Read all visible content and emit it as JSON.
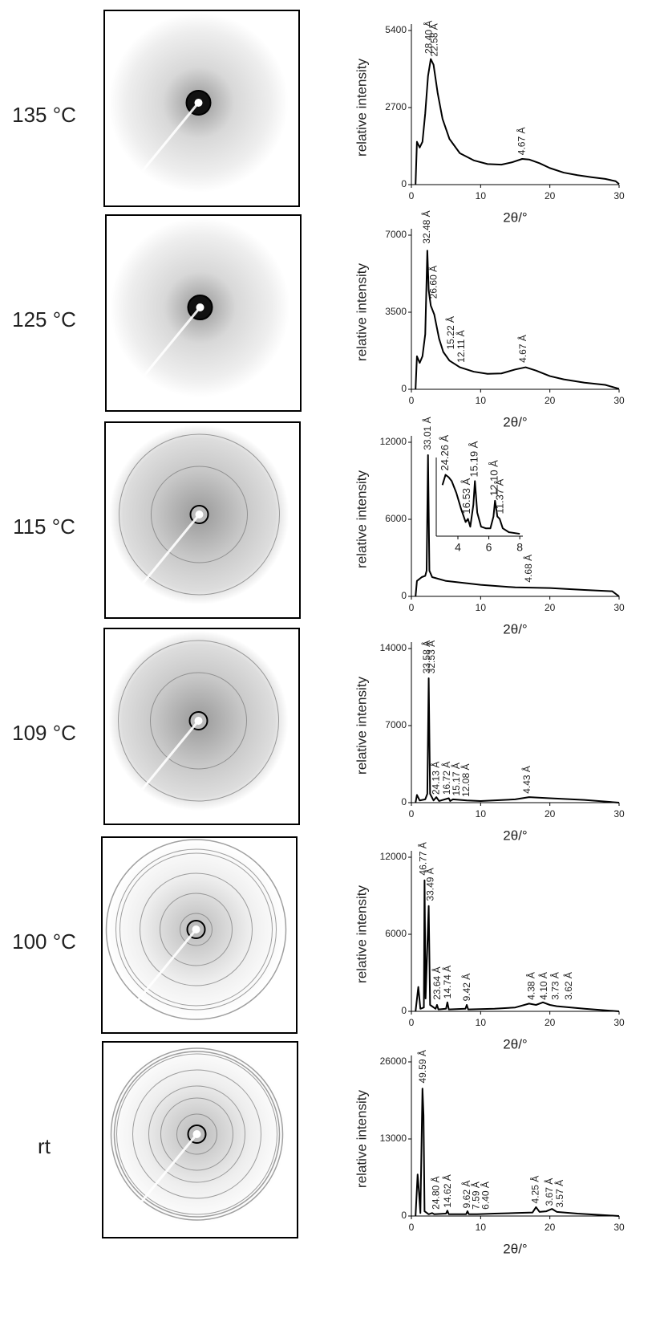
{
  "chart_data": [
    {
      "type": "line",
      "title": "135 °C",
      "xlabel": "2θ/°",
      "ylabel": "relative intensity",
      "color": "#000000",
      "xlim": [
        0,
        30
      ],
      "xticks": [
        0,
        10,
        20,
        30
      ],
      "ylim": [
        0,
        5400
      ],
      "yticks": [
        0,
        2700,
        5400
      ],
      "x": [
        0.6,
        0.8,
        1.2,
        1.6,
        2.0,
        2.4,
        2.8,
        3.2,
        3.8,
        4.5,
        5.5,
        7,
        9,
        11,
        13,
        14.5,
        16,
        17,
        18.5,
        20,
        22,
        24,
        26,
        28,
        29.5,
        30
      ],
      "values": [
        0,
        1500,
        1300,
        1500,
        2500,
        3800,
        4400,
        4200,
        3200,
        2300,
        1600,
        1100,
        850,
        720,
        700,
        780,
        900,
        880,
        750,
        580,
        420,
        330,
        260,
        200,
        120,
        20
      ],
      "annotations": [
        {
          "text": "28.40 Å",
          "x": 2.6,
          "y": 4500
        },
        {
          "text": "22.58 Å",
          "x": 3.4,
          "y": 4400
        },
        {
          "text": "4.67 Å",
          "x": 16,
          "y": 950
        }
      ]
    },
    {
      "type": "line",
      "title": "125 °C",
      "xlabel": "2θ/°",
      "ylabel": "relative intensity",
      "color": "#000000",
      "xlim": [
        0,
        30
      ],
      "xticks": [
        0,
        10,
        20,
        30
      ],
      "ylim": [
        0,
        7000
      ],
      "yticks": [
        0,
        3500,
        7000
      ],
      "x": [
        0.6,
        0.8,
        1.2,
        1.6,
        2.0,
        2.3,
        2.5,
        2.8,
        3.3,
        4.0,
        4.6,
        5.5,
        7,
        9,
        11,
        13,
        15,
        16.5,
        18,
        20,
        22,
        25,
        28,
        30
      ],
      "values": [
        0,
        1500,
        1200,
        1500,
        2500,
        6300,
        4500,
        3800,
        3400,
        2300,
        1700,
        1300,
        1000,
        800,
        700,
        720,
        900,
        1000,
        850,
        600,
        450,
        300,
        200,
        20
      ],
      "annotations": [
        {
          "text": "32.48 Å",
          "x": 2.3,
          "y": 6500
        },
        {
          "text": "26.60 Å",
          "x": 3.3,
          "y": 4000
        },
        {
          "text": "15.22 Å",
          "x": 5.8,
          "y": 1700
        },
        {
          "text": "12.11 Å",
          "x": 7.3,
          "y": 1100
        },
        {
          "text": "4.67 Å",
          "x": 16.2,
          "y": 1100
        }
      ]
    },
    {
      "type": "line",
      "title": "115 °C",
      "xlabel": "2θ/°",
      "ylabel": "relative intensity",
      "color": "#000000",
      "xlim": [
        0,
        30
      ],
      "xticks": [
        0,
        10,
        20,
        30
      ],
      "ylim": [
        0,
        12000
      ],
      "yticks": [
        0,
        6000,
        12000
      ],
      "x": [
        0.6,
        0.8,
        1.5,
        2.0,
        2.2,
        2.4,
        2.6,
        3,
        5,
        10,
        15,
        20,
        25,
        29,
        30
      ],
      "values": [
        0,
        1200,
        1500,
        1600,
        2000,
        11000,
        2000,
        1500,
        1200,
        900,
        700,
        650,
        500,
        400,
        0
      ],
      "annotations": [
        {
          "text": "33.01 Å",
          "x": 2.4,
          "y": 11200
        },
        {
          "text": "4.68 Å",
          "x": 17,
          "y": 900
        }
      ],
      "inset": {
        "xlim": [
          2.6,
          8.2
        ],
        "xticks": [
          4,
          6,
          8
        ],
        "ylim": [
          0,
          100
        ],
        "x": [
          3.0,
          3.2,
          3.4,
          3.6,
          3.9,
          4.2,
          4.5,
          4.65,
          4.8,
          5.0,
          5.1,
          5.25,
          5.5,
          5.8,
          6.1,
          6.3,
          6.4,
          6.55,
          6.7,
          6.9,
          7.3,
          8.0
        ],
        "values": [
          65,
          78,
          75,
          70,
          55,
          35,
          18,
          22,
          12,
          40,
          70,
          30,
          12,
          10,
          10,
          25,
          45,
          25,
          22,
          10,
          5,
          3
        ],
        "annotations": [
          {
            "text": "24.26 Å",
            "x": 3.2,
            "y": 80
          },
          {
            "text": "16.53 Å",
            "x": 4.6,
            "y": 25
          },
          {
            "text": "15.19 Å",
            "x": 5.1,
            "y": 72
          },
          {
            "text": "12.10 Å",
            "x": 6.4,
            "y": 48
          },
          {
            "text": "11.37 Å",
            "x": 6.75,
            "y": 25
          }
        ]
      }
    },
    {
      "type": "line",
      "title": "109 °C",
      "xlabel": "2θ/°",
      "ylabel": "relative intensity",
      "color": "#000000",
      "xlim": [
        0,
        30
      ],
      "xticks": [
        0,
        10,
        20,
        30
      ],
      "ylim": [
        0,
        14000
      ],
      "yticks": [
        0,
        7000,
        14000
      ],
      "x": [
        0.6,
        0.8,
        1.2,
        2.0,
        2.3,
        2.5,
        2.7,
        3.2,
        3.6,
        4,
        5.4,
        5.6,
        6,
        8,
        10,
        15,
        17,
        20,
        25,
        30
      ],
      "values": [
        0,
        700,
        200,
        300,
        800,
        11300,
        800,
        200,
        500,
        150,
        400,
        150,
        300,
        200,
        150,
        300,
        500,
        400,
        250,
        0
      ],
      "annotations": [
        {
          "text": "33.58 Å",
          "x": 2.3,
          "y": 11500
        },
        {
          "text": "32.53 Å",
          "x": 3.0,
          "y": 11500
        },
        {
          "text": "24.13 Å",
          "x": 3.6,
          "y": 500
        },
        {
          "text": "16.72 Å",
          "x": 5.2,
          "y": 500
        },
        {
          "text": "15.17 Å",
          "x": 6.6,
          "y": 400
        },
        {
          "text": "12.08 Å",
          "x": 8.0,
          "y": 300
        },
        {
          "text": "4.43 Å",
          "x": 16.8,
          "y": 600
        }
      ]
    },
    {
      "type": "line",
      "title": "100 °C",
      "xlabel": "2θ/°",
      "ylabel": "relative intensity",
      "color": "#000000",
      "xlim": [
        0,
        30
      ],
      "xticks": [
        0,
        10,
        20,
        30
      ],
      "ylim": [
        0,
        12000
      ],
      "yticks": [
        0,
        6000,
        12000
      ],
      "x": [
        0.6,
        1.0,
        1.3,
        1.8,
        1.9,
        2.05,
        2.5,
        2.7,
        3.5,
        3.7,
        3.9,
        5.0,
        5.2,
        5.4,
        7.8,
        8.0,
        8.2,
        12,
        15,
        17,
        18,
        19,
        20,
        21,
        25,
        30
      ],
      "values": [
        0,
        1900,
        200,
        300,
        10200,
        1000,
        8200,
        500,
        200,
        500,
        150,
        200,
        700,
        150,
        200,
        500,
        150,
        200,
        300,
        600,
        500,
        700,
        500,
        400,
        200,
        0
      ],
      "annotations": [
        {
          "text": "46.77 Å",
          "x": 1.8,
          "y": 10400
        },
        {
          "text": "33.49 Å",
          "x": 2.8,
          "y": 8400
        },
        {
          "text": "23.64 Å",
          "x": 3.8,
          "y": 700
        },
        {
          "text": "14.74 Å",
          "x": 5.3,
          "y": 800
        },
        {
          "text": "9.42 Å",
          "x": 8.1,
          "y": 600
        },
        {
          "text": "4.38 Å",
          "x": 17.4,
          "y": 700
        },
        {
          "text": "4.10 Å",
          "x": 19.2,
          "y": 700
        },
        {
          "text": "3.73 Å",
          "x": 20.9,
          "y": 700
        },
        {
          "text": "3.62 Å",
          "x": 22.8,
          "y": 700
        }
      ]
    },
    {
      "type": "line",
      "title": "rt",
      "xlabel": "2θ/°",
      "ylabel": "relative intensity",
      "color": "#000000",
      "xlim": [
        0,
        30
      ],
      "xticks": [
        0,
        10,
        20,
        30
      ],
      "ylim": [
        0,
        26000
      ],
      "yticks": [
        0,
        13000,
        26000
      ],
      "x": [
        0.6,
        0.9,
        1.1,
        1.3,
        1.6,
        1.75,
        1.9,
        2.5,
        3.0,
        3.3,
        5,
        5.2,
        5.4,
        7.9,
        8.1,
        8.3,
        9.5,
        12,
        15,
        17.5,
        18,
        18.5,
        19.5,
        20.3,
        21,
        24,
        30
      ],
      "values": [
        0,
        7000,
        4000,
        500,
        21500,
        17000,
        800,
        300,
        500,
        300,
        400,
        900,
        300,
        300,
        800,
        300,
        300,
        400,
        500,
        600,
        1500,
        700,
        800,
        1200,
        700,
        400,
        0
      ],
      "annotations": [
        {
          "text": "49.59 Å",
          "x": 1.7,
          "y": 22000
        },
        {
          "text": "24.80 Å",
          "x": 3.6,
          "y": 700
        },
        {
          "text": "14.62 Å",
          "x": 5.3,
          "y": 1000
        },
        {
          "text": "9.62 Å",
          "x": 8.1,
          "y": 900
        },
        {
          "text": "7.59 Å",
          "x": 9.4,
          "y": 700
        },
        {
          "text": "6.40 Å",
          "x": 10.8,
          "y": 700
        },
        {
          "text": "4.25 Å",
          "x": 18,
          "y": 1700
        },
        {
          "text": "3.67 Å",
          "x": 20,
          "y": 1300
        },
        {
          "text": "3.57 Å",
          "x": 21.5,
          "y": 1000
        }
      ]
    }
  ]
}
